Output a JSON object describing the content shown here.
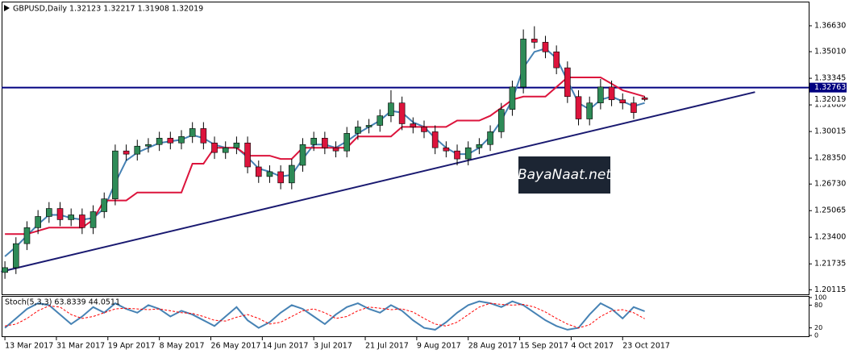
{
  "chart_data": {
    "type": "candlestick",
    "title": "GBPUSD,Daily  1.32123 1.32217 1.31908 1.32019",
    "x": [
      0,
      3,
      6,
      9,
      12,
      15,
      18,
      21,
      24,
      27,
      30,
      33,
      36,
      39,
      42,
      45,
      48,
      51,
      54,
      57,
      60,
      63,
      66,
      69,
      72,
      75,
      78,
      81,
      84,
      87,
      90,
      93,
      96,
      99,
      102,
      105,
      108,
      111,
      114,
      117,
      120,
      123,
      126,
      129,
      132,
      135,
      138,
      141,
      144,
      147,
      150,
      153,
      156,
      159,
      162,
      165,
      168,
      171,
      174
    ],
    "open": [
      1.212,
      1.215,
      1.23,
      1.24,
      1.247,
      1.252,
      1.245,
      1.248,
      1.24,
      1.25,
      1.258,
      1.288,
      1.286,
      1.291,
      1.292,
      1.296,
      1.293,
      1.297,
      1.302,
      1.293,
      1.287,
      1.29,
      1.293,
      1.278,
      1.272,
      1.275,
      1.268,
      1.279,
      1.292,
      1.296,
      1.29,
      1.288,
      1.299,
      1.303,
      1.304,
      1.31,
      1.318,
      1.305,
      1.303,
      1.3,
      1.29,
      1.288,
      1.283,
      1.29,
      1.292,
      1.3,
      1.314,
      1.328,
      1.358,
      1.356,
      1.35,
      1.34,
      1.322,
      1.308,
      1.318,
      1.328,
      1.32,
      1.318,
      1.32123
    ],
    "high": [
      1.219,
      1.234,
      1.244,
      1.251,
      1.256,
      1.256,
      1.252,
      1.252,
      1.254,
      1.262,
      1.292,
      1.292,
      1.295,
      1.296,
      1.3,
      1.3,
      1.301,
      1.306,
      1.306,
      1.297,
      1.294,
      1.297,
      1.297,
      1.282,
      1.279,
      1.279,
      1.283,
      1.296,
      1.3,
      1.3,
      1.294,
      1.303,
      1.307,
      1.308,
      1.314,
      1.326,
      1.322,
      1.309,
      1.307,
      1.304,
      1.294,
      1.292,
      1.294,
      1.296,
      1.304,
      1.318,
      1.332,
      1.364,
      1.366,
      1.36,
      1.354,
      1.344,
      1.326,
      1.322,
      1.333,
      1.332,
      1.324,
      1.322,
      1.32217
    ],
    "low": [
      1.208,
      1.211,
      1.226,
      1.236,
      1.243,
      1.241,
      1.241,
      1.236,
      1.236,
      1.246,
      1.254,
      1.282,
      1.282,
      1.287,
      1.288,
      1.289,
      1.289,
      1.293,
      1.289,
      1.283,
      1.283,
      1.286,
      1.274,
      1.268,
      1.268,
      1.264,
      1.264,
      1.275,
      1.288,
      1.286,
      1.284,
      1.284,
      1.295,
      1.299,
      1.3,
      1.306,
      1.301,
      1.299,
      1.296,
      1.286,
      1.284,
      1.279,
      1.279,
      1.286,
      1.288,
      1.296,
      1.31,
      1.324,
      1.352,
      1.346,
      1.336,
      1.318,
      1.304,
      1.304,
      1.314,
      1.316,
      1.314,
      1.308,
      1.31908
    ],
    "close": [
      1.215,
      1.23,
      1.24,
      1.247,
      1.252,
      1.245,
      1.248,
      1.24,
      1.25,
      1.258,
      1.288,
      1.286,
      1.291,
      1.292,
      1.296,
      1.293,
      1.297,
      1.302,
      1.293,
      1.287,
      1.29,
      1.293,
      1.278,
      1.272,
      1.275,
      1.268,
      1.279,
      1.292,
      1.296,
      1.29,
      1.288,
      1.299,
      1.303,
      1.304,
      1.31,
      1.318,
      1.305,
      1.303,
      1.3,
      1.29,
      1.288,
      1.283,
      1.29,
      1.292,
      1.3,
      1.314,
      1.328,
      1.358,
      1.356,
      1.35,
      1.34,
      1.322,
      1.308,
      1.318,
      1.328,
      1.32,
      1.318,
      1.312,
      1.32019
    ],
    "up_color": "#2e8b57",
    "down_color": "#dc143c",
    "lines": [
      {
        "color": "#4682b4",
        "values": [
          1.222,
          1.228,
          1.235,
          1.242,
          1.248,
          1.248,
          1.246,
          1.245,
          1.246,
          1.252,
          1.268,
          1.282,
          1.287,
          1.29,
          1.293,
          1.294,
          1.295,
          1.298,
          1.296,
          1.292,
          1.29,
          1.29,
          1.284,
          1.277,
          1.275,
          1.272,
          1.273,
          1.283,
          1.292,
          1.292,
          1.29,
          1.294,
          1.299,
          1.303,
          1.307,
          1.313,
          1.312,
          1.306,
          1.303,
          1.296,
          1.29,
          1.286,
          1.286,
          1.29,
          1.297,
          1.307,
          1.32,
          1.34,
          1.35,
          1.352,
          1.346,
          1.332,
          1.318,
          1.314,
          1.32,
          1.322,
          1.319,
          1.316,
          1.318
        ]
      },
      {
        "color": "#dc143c",
        "values": [
          1.236,
          1.236,
          1.236,
          1.238,
          1.24,
          1.24,
          1.24,
          1.24,
          1.245,
          1.257,
          1.257,
          1.257,
          1.262,
          1.262,
          1.262,
          1.262,
          1.262,
          1.28,
          1.28,
          1.29,
          1.29,
          1.29,
          1.285,
          1.285,
          1.285,
          1.283,
          1.283,
          1.29,
          1.29,
          1.29,
          1.29,
          1.29,
          1.297,
          1.297,
          1.297,
          1.297,
          1.303,
          1.303,
          1.303,
          1.303,
          1.303,
          1.307,
          1.307,
          1.307,
          1.31,
          1.315,
          1.32,
          1.322,
          1.322,
          1.322,
          1.328,
          1.334,
          1.334,
          1.334,
          1.334,
          1.33,
          1.326,
          1.324,
          1.322
        ]
      }
    ],
    "hline": 1.32763,
    "hline_color": "#000080",
    "trendline": {
      "x": [
        -1,
        204
      ],
      "values": [
        1.2125,
        1.3248
      ],
      "color": "#191970"
    },
    "xlim": [
      -0.9,
      218.6
    ],
    "ylim": [
      1.1983,
      1.3799
    ],
    "yticks": [
      {
        "value": 1.3663,
        "label": "1.36630"
      },
      {
        "value": 1.3501,
        "label": "1.35010"
      },
      {
        "value": 1.33345,
        "label": "1.33345"
      },
      {
        "value": 1.3168,
        "label": "1.31680"
      },
      {
        "value": 1.30015,
        "label": "1.30015"
      },
      {
        "value": 1.2835,
        "label": "1.28350"
      },
      {
        "value": 1.2673,
        "label": "1.26730"
      },
      {
        "value": 1.25065,
        "label": "1.25065"
      },
      {
        "value": 1.234,
        "label": "1.23400"
      },
      {
        "value": 1.21735,
        "label": "1.21735"
      },
      {
        "value": 1.20115,
        "label": "1.20115"
      }
    ],
    "xticks": [
      {
        "value": 0,
        "label": "13 Mar 2017"
      },
      {
        "value": 14,
        "label": "31 Mar 2017"
      },
      {
        "value": 28,
        "label": "19 Apr 2017"
      },
      {
        "value": 42,
        "label": "8 May 2017"
      },
      {
        "value": 56,
        "label": "26 May 2017"
      },
      {
        "value": 70,
        "label": "14 Jun 2017"
      },
      {
        "value": 84,
        "label": "3 Jul 2017"
      },
      {
        "value": 98,
        "label": "21 Jul 2017"
      },
      {
        "value": 112,
        "label": "9 Aug 2017"
      },
      {
        "value": 126,
        "label": "28 Aug 2017"
      },
      {
        "value": 140,
        "label": "15 Sep 2017"
      },
      {
        "value": 154,
        "label": "4 Oct 2017"
      },
      {
        "value": 168,
        "label": "23 Oct 2017"
      }
    ],
    "watermark": "BayaNaat.net",
    "indicator": {
      "type": "line",
      "title": "Stoch(5,3,3) 63.8339 44.0511",
      "ylim": [
        0,
        100
      ],
      "yticks": [
        100,
        80,
        20,
        0
      ],
      "series": [
        {
          "color": "#4682b4",
          "dashed": false,
          "values": [
            20,
            45,
            70,
            85,
            80,
            55,
            30,
            50,
            75,
            60,
            85,
            70,
            60,
            80,
            70,
            50,
            65,
            55,
            40,
            25,
            50,
            75,
            40,
            20,
            35,
            60,
            80,
            70,
            50,
            30,
            55,
            75,
            85,
            70,
            60,
            80,
            65,
            40,
            20,
            15,
            35,
            60,
            80,
            90,
            85,
            75,
            90,
            80,
            60,
            40,
            25,
            15,
            20,
            55,
            85,
            70,
            45,
            75,
            63.8339
          ]
        },
        {
          "color": "#ff0000",
          "dashed": true,
          "values": [
            25,
            30,
            45,
            65,
            78,
            75,
            55,
            45,
            50,
            60,
            70,
            72,
            70,
            68,
            70,
            65,
            60,
            58,
            50,
            40,
            38,
            48,
            55,
            45,
            30,
            35,
            50,
            65,
            70,
            60,
            45,
            50,
            65,
            75,
            72,
            68,
            70,
            62,
            45,
            30,
            25,
            35,
            55,
            75,
            85,
            82,
            80,
            82,
            75,
            62,
            45,
            30,
            20,
            28,
            50,
            65,
            68,
            60,
            44.0511
          ]
        }
      ]
    }
  }
}
